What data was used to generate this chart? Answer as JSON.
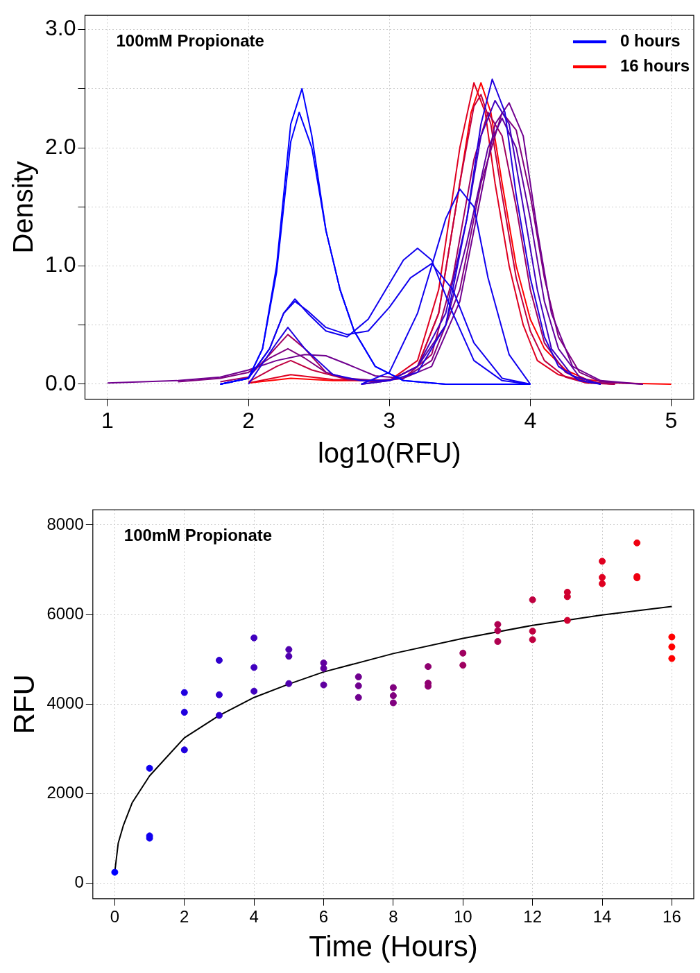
{
  "chart_data": [
    {
      "type": "line",
      "title": "100mM Propionate",
      "xlabel": "log10(RFU)",
      "ylabel": "Density",
      "xlim": [
        0.84,
        5.16
      ],
      "ylim": [
        -0.127,
        3.12
      ],
      "xticks": [
        1,
        2,
        3,
        4,
        5
      ],
      "yticks": [
        {
          "value": 0,
          "label": "0.0"
        },
        {
          "value": 0.5,
          "label": null
        },
        {
          "value": 1,
          "label": "1.0"
        },
        {
          "value": 1.5,
          "label": null
        },
        {
          "value": 2,
          "label": "2.0"
        },
        {
          "value": 2.5,
          "label": null
        },
        {
          "value": 3,
          "label": "3.0"
        }
      ],
      "grid": true,
      "legend": "top right",
      "series": [
        {
          "name": "0 hours",
          "color": "#0000ff",
          "x": [
            1.8,
            2.0,
            2.1,
            2.2,
            2.3,
            2.38,
            2.45,
            2.55,
            2.65,
            2.75,
            2.9,
            3.1,
            3.4,
            4.0
          ],
          "values": [
            0,
            0.05,
            0.3,
            1.0,
            2.2,
            2.5,
            2.1,
            1.3,
            0.8,
            0.45,
            0.15,
            0.03,
            0,
            0
          ]
        },
        {
          "color": "#0000ff",
          "x": [
            1.8,
            2.0,
            2.1,
            2.2,
            2.3,
            2.36,
            2.45,
            2.55,
            2.65,
            2.75,
            2.9,
            3.1,
            3.4,
            4.0
          ],
          "values": [
            0,
            0.05,
            0.3,
            0.95,
            2.05,
            2.3,
            2.0,
            1.3,
            0.8,
            0.45,
            0.15,
            0.03,
            0,
            0
          ]
        },
        {
          "color": "#1000ef",
          "x": [
            1.8,
            2.0,
            2.15,
            2.25,
            2.33,
            2.42,
            2.55,
            2.7,
            2.85,
            3.0,
            3.1,
            3.2,
            3.3,
            3.45,
            3.6,
            3.8,
            4.0
          ],
          "values": [
            0,
            0.05,
            0.3,
            0.6,
            0.72,
            0.6,
            0.45,
            0.4,
            0.55,
            0.85,
            1.05,
            1.15,
            1.05,
            0.6,
            0.2,
            0.03,
            0
          ]
        },
        {
          "color": "#1000ef",
          "x": [
            1.8,
            2.0,
            2.15,
            2.25,
            2.33,
            2.42,
            2.55,
            2.7,
            2.85,
            3.0,
            3.15,
            3.3,
            3.45,
            3.6,
            3.8,
            4.0
          ],
          "values": [
            0,
            0.05,
            0.3,
            0.6,
            0.7,
            0.62,
            0.48,
            0.42,
            0.45,
            0.65,
            0.9,
            1.02,
            0.8,
            0.35,
            0.05,
            0
          ]
        },
        {
          "color": "#1000ef",
          "x": [
            2.8,
            3.0,
            3.2,
            3.4,
            3.5,
            3.6,
            3.7,
            3.85,
            4.0
          ],
          "values": [
            0,
            0.1,
            0.6,
            1.4,
            1.65,
            1.5,
            0.9,
            0.25,
            0
          ]
        },
        {
          "color": "#2000df",
          "x": [
            2.0,
            2.2,
            2.28,
            2.4,
            2.6,
            2.8,
            3.0,
            3.2,
            3.4,
            3.55,
            3.65,
            3.73,
            3.82,
            3.9,
            4.0,
            4.1,
            4.2,
            4.35,
            4.5
          ],
          "values": [
            0,
            0.35,
            0.48,
            0.3,
            0.08,
            0.03,
            0.03,
            0.1,
            0.5,
            1.4,
            2.2,
            2.58,
            2.3,
            1.6,
            0.9,
            0.4,
            0.15,
            0.03,
            0
          ]
        },
        {
          "color": "#4000bf",
          "x": [
            2.8,
            3.0,
            3.2,
            3.4,
            3.55,
            3.65,
            3.75,
            3.85,
            3.95,
            4.05,
            4.15,
            4.3,
            4.5
          ],
          "values": [
            0,
            0.03,
            0.15,
            0.6,
            1.4,
            2.1,
            2.4,
            2.2,
            1.5,
            0.8,
            0.3,
            0.07,
            0
          ]
        },
        {
          "color": "#60009f",
          "x": [
            2.8,
            3.0,
            3.2,
            3.4,
            3.55,
            3.7,
            3.8,
            3.9,
            4.0,
            4.1,
            4.2,
            4.35,
            4.5
          ],
          "values": [
            0,
            0.03,
            0.15,
            0.5,
            1.2,
            2.0,
            2.25,
            2.0,
            1.4,
            0.7,
            0.3,
            0.06,
            0
          ]
        },
        {
          "color": "#70008f",
          "x": [
            1.0,
            1.5,
            1.8,
            2.0,
            2.2,
            2.4,
            2.55,
            2.7,
            2.9,
            3.1,
            3.3,
            3.5,
            3.65,
            3.75,
            3.85,
            3.95,
            4.05,
            4.15,
            4.3,
            4.5,
            4.8
          ],
          "values": [
            0.01,
            0.03,
            0.06,
            0.12,
            0.2,
            0.25,
            0.24,
            0.17,
            0.07,
            0.05,
            0.15,
            0.7,
            1.6,
            2.2,
            2.38,
            2.1,
            1.3,
            0.6,
            0.15,
            0.03,
            0
          ]
        },
        {
          "color": "#80007f",
          "x": [
            1.5,
            1.8,
            2.0,
            2.15,
            2.28,
            2.4,
            2.55,
            2.7,
            2.9,
            3.1,
            3.3,
            3.5,
            3.65,
            3.8,
            3.9,
            4.0,
            4.1,
            4.2,
            4.35,
            4.5,
            4.8
          ],
          "values": [
            0.02,
            0.05,
            0.1,
            0.22,
            0.3,
            0.22,
            0.1,
            0.05,
            0.03,
            0.05,
            0.2,
            0.8,
            1.7,
            2.3,
            2.15,
            1.6,
            0.9,
            0.4,
            0.1,
            0.02,
            0
          ]
        },
        {
          "color": "#9f0060",
          "x": [
            1.8,
            2.0,
            2.15,
            2.28,
            2.4,
            2.55,
            2.7,
            2.9,
            3.1,
            3.3,
            3.45,
            3.6,
            3.7,
            3.8,
            3.9,
            4.0,
            4.1,
            4.25,
            4.4,
            4.6
          ],
          "values": [
            0.02,
            0.06,
            0.25,
            0.42,
            0.3,
            0.1,
            0.04,
            0.02,
            0.05,
            0.25,
            0.9,
            1.9,
            2.3,
            2.1,
            1.5,
            0.8,
            0.35,
            0.1,
            0.02,
            0
          ]
        },
        {
          "color": "#bf0040",
          "x": [
            2.0,
            2.2,
            2.3,
            2.45,
            2.7,
            3.0,
            3.2,
            3.35,
            3.5,
            3.6,
            3.65,
            3.72,
            3.8,
            3.9,
            4.0,
            4.1,
            4.25,
            4.4,
            4.6
          ],
          "values": [
            0.02,
            0.15,
            0.2,
            0.12,
            0.04,
            0.03,
            0.15,
            0.6,
            1.7,
            2.35,
            2.45,
            2.2,
            1.6,
            0.9,
            0.45,
            0.2,
            0.06,
            0.01,
            0
          ]
        },
        {
          "color": "#df0020",
          "x": [
            2.0,
            2.3,
            2.6,
            3.0,
            3.2,
            3.35,
            3.5,
            3.6,
            3.68,
            3.75,
            3.85,
            3.95,
            4.05,
            4.2,
            4.4,
            4.6
          ],
          "values": [
            0.01,
            0.08,
            0.04,
            0.03,
            0.2,
            0.8,
            2.0,
            2.55,
            2.3,
            1.7,
            1.0,
            0.5,
            0.2,
            0.08,
            0.02,
            0
          ]
        },
        {
          "name": "16 hours",
          "color": "#ff0000",
          "x": [
            2.0,
            2.3,
            2.6,
            3.0,
            3.2,
            3.35,
            3.5,
            3.58,
            3.65,
            3.72,
            3.8,
            3.9,
            4.0,
            4.1,
            4.25,
            4.4,
            4.6,
            5.0
          ],
          "values": [
            0.01,
            0.05,
            0.03,
            0.03,
            0.15,
            0.6,
            1.7,
            2.3,
            2.55,
            2.3,
            1.7,
            1.0,
            0.55,
            0.3,
            0.12,
            0.04,
            0.01,
            0
          ]
        }
      ]
    },
    {
      "type": "scatter",
      "title": "100mM Propionate",
      "xlabel": "Time (Hours)",
      "ylabel": "RFU",
      "xlim": [
        -0.63,
        16.63
      ],
      "ylim": [
        -340,
        8340
      ],
      "xticks": [
        0,
        2,
        4,
        6,
        8,
        10,
        12,
        14,
        16
      ],
      "yticks": [
        0,
        2000,
        4000,
        6000,
        8000
      ],
      "grid": true,
      "series": [
        {
          "x": [
            0,
            1,
            1,
            1,
            2,
            2,
            2,
            3,
            3,
            3,
            4,
            4,
            4,
            5,
            5,
            5,
            6,
            6,
            6,
            7,
            7,
            7,
            8,
            8,
            8,
            9,
            9,
            9,
            10,
            10,
            11,
            11,
            11,
            12,
            12,
            12,
            13,
            13,
            13,
            14,
            14,
            14,
            15,
            15,
            15,
            16,
            16,
            16
          ],
          "values": [
            250,
            2570,
            1060,
            1010,
            4260,
            3820,
            2980,
            4980,
            4210,
            3750,
            5480,
            4820,
            4290,
            5220,
            5070,
            4460,
            4920,
            4800,
            4430,
            4610,
            4410,
            4150,
            4370,
            4190,
            4030,
            4840,
            4470,
            4400,
            5140,
            4870,
            5780,
            5640,
            5400,
            6330,
            5630,
            5440,
            6500,
            6400,
            5870,
            7190,
            6830,
            6690,
            7600,
            6850,
            6820,
            5500,
            5280,
            5020
          ],
          "colors": [
            "#0000ff",
            "#1000ef",
            "#1000ef",
            "#1000ef",
            "#2000df",
            "#2000df",
            "#2000df",
            "#3000cf",
            "#3000cf",
            "#3000cf",
            "#4000bf",
            "#4000bf",
            "#4000bf",
            "#5000af",
            "#5000af",
            "#5000af",
            "#60009f",
            "#60009f",
            "#60009f",
            "#70008f",
            "#70008f",
            "#70008f",
            "#80007f",
            "#80007f",
            "#80007f",
            "#8f0070",
            "#8f0070",
            "#8f0070",
            "#9f0060",
            "#9f0060",
            "#af0050",
            "#af0050",
            "#af0050",
            "#bf0040",
            "#bf0040",
            "#bf0040",
            "#cf0030",
            "#cf0030",
            "#cf0030",
            "#df0020",
            "#df0020",
            "#df0020",
            "#ef0010",
            "#ef0010",
            "#ef0010",
            "#ff0000",
            "#ff0000",
            "#ff0000"
          ]
        },
        {
          "type": "line",
          "color": "#000000",
          "x": [
            0,
            0.1,
            0.25,
            0.5,
            1,
            2,
            3,
            4,
            5,
            6,
            8,
            10,
            12,
            14,
            16
          ],
          "values": [
            250,
            900,
            1300,
            1800,
            2400,
            3250,
            3750,
            4150,
            4450,
            4720,
            5130,
            5470,
            5760,
            5990,
            6180
          ]
        }
      ]
    }
  ]
}
